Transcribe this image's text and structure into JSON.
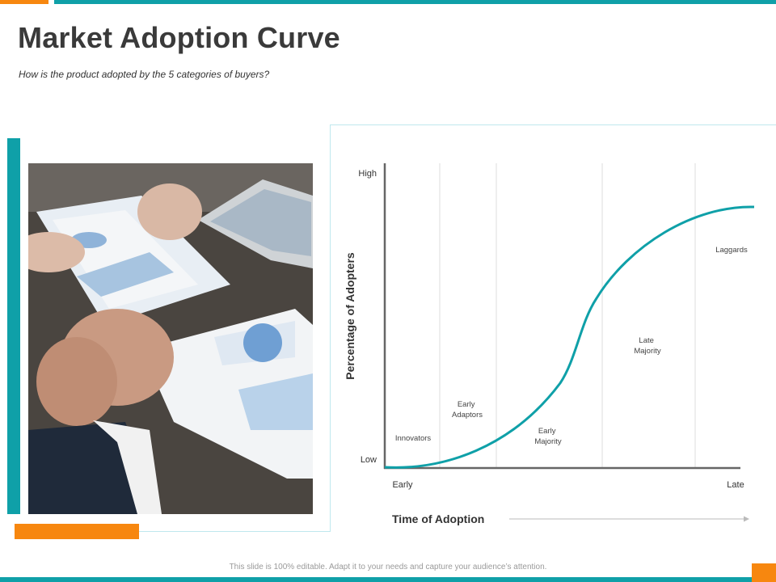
{
  "header": {
    "title": "Market Adoption Curve",
    "subtitle": "How is the product adopted by the 5 categories of buyers?"
  },
  "footer": {
    "note": "This slide is 100% editable. Adapt it to your needs and capture your audience’s attention."
  },
  "colors": {
    "teal": "#0fa0a8",
    "orange": "#f7870f",
    "axis": "#666666",
    "divider": "#dddddd"
  },
  "chart_data": {
    "type": "line",
    "ylabel": "Percentage of Adopters",
    "xlabel": "Time of Adoption",
    "y_ticks": [
      "Low",
      "High"
    ],
    "x_ticks": [
      "Early",
      "Late"
    ],
    "segments": [
      {
        "name": "innovators",
        "label_lines": [
          "Innovators"
        ]
      },
      {
        "name": "early-adaptors",
        "label_lines": [
          "Early",
          "Adaptors"
        ]
      },
      {
        "name": "early-majority",
        "label_lines": [
          "Early",
          "Majority"
        ]
      },
      {
        "name": "late-majority",
        "label_lines": [
          "Late",
          "Majority"
        ]
      },
      {
        "name": "laggards",
        "label_lines": [
          "Laggards"
        ]
      }
    ],
    "curve": "s-curve",
    "grid": false
  }
}
